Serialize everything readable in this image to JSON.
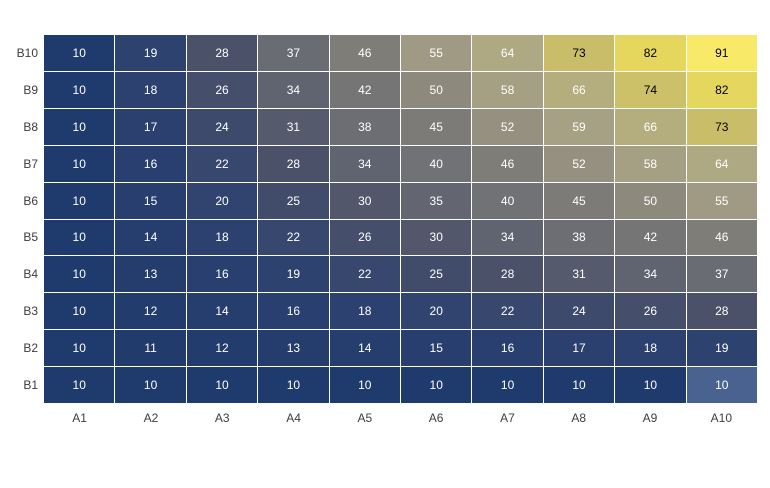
{
  "chart_data": {
    "type": "heatmap",
    "x_categories": [
      "A1",
      "A2",
      "A3",
      "A4",
      "A5",
      "A6",
      "A7",
      "A8",
      "A9",
      "A10"
    ],
    "y_categories_top_to_bottom": [
      "B10",
      "B9",
      "B8",
      "B7",
      "B6",
      "B5",
      "B4",
      "B3",
      "B2",
      "B1"
    ],
    "values_by_display_row": [
      [
        10,
        19,
        28,
        37,
        46,
        55,
        64,
        73,
        82,
        91
      ],
      [
        10,
        18,
        26,
        34,
        42,
        50,
        58,
        66,
        74,
        82
      ],
      [
        10,
        17,
        24,
        31,
        38,
        45,
        52,
        59,
        66,
        73
      ],
      [
        10,
        16,
        22,
        28,
        34,
        40,
        46,
        52,
        58,
        64
      ],
      [
        10,
        15,
        20,
        25,
        30,
        35,
        40,
        45,
        50,
        55
      ],
      [
        10,
        14,
        18,
        22,
        26,
        30,
        34,
        38,
        42,
        46
      ],
      [
        10,
        13,
        16,
        19,
        22,
        25,
        28,
        31,
        34,
        37
      ],
      [
        10,
        12,
        14,
        16,
        18,
        20,
        22,
        24,
        26,
        28
      ],
      [
        10,
        11,
        12,
        13,
        14,
        15,
        16,
        17,
        18,
        19
      ],
      [
        10,
        10,
        10,
        10,
        10,
        10,
        10,
        10,
        10,
        10
      ]
    ],
    "value_range": [
      10,
      91
    ],
    "colormap": {
      "stops": [
        {
          "v": 10,
          "c": "#1f3a6c"
        },
        {
          "v": 19,
          "c": "#2e4270"
        },
        {
          "v": 28,
          "c": "#4b5168"
        },
        {
          "v": 37,
          "c": "#6a6c74"
        },
        {
          "v": 46,
          "c": "#7e7d78"
        },
        {
          "v": 55,
          "c": "#a09a84"
        },
        {
          "v": 64,
          "c": "#aea883"
        },
        {
          "v": 73,
          "c": "#c9bd6a"
        },
        {
          "v": 82,
          "c": "#e5d65e"
        },
        {
          "v": 91,
          "c": "#f8e968"
        }
      ]
    },
    "cell_label_colors": {
      "light": "#ffffff",
      "dark": "#000000"
    },
    "black_text_min_value": 73,
    "highlight_cell": {
      "row": "B1",
      "col": "A10",
      "color": "#4a6290"
    },
    "axis_label_color": "#3d3d3d",
    "background_color": "#ffffff",
    "grid_line_color": "#ffffff",
    "legend_position": "none",
    "title": ""
  }
}
